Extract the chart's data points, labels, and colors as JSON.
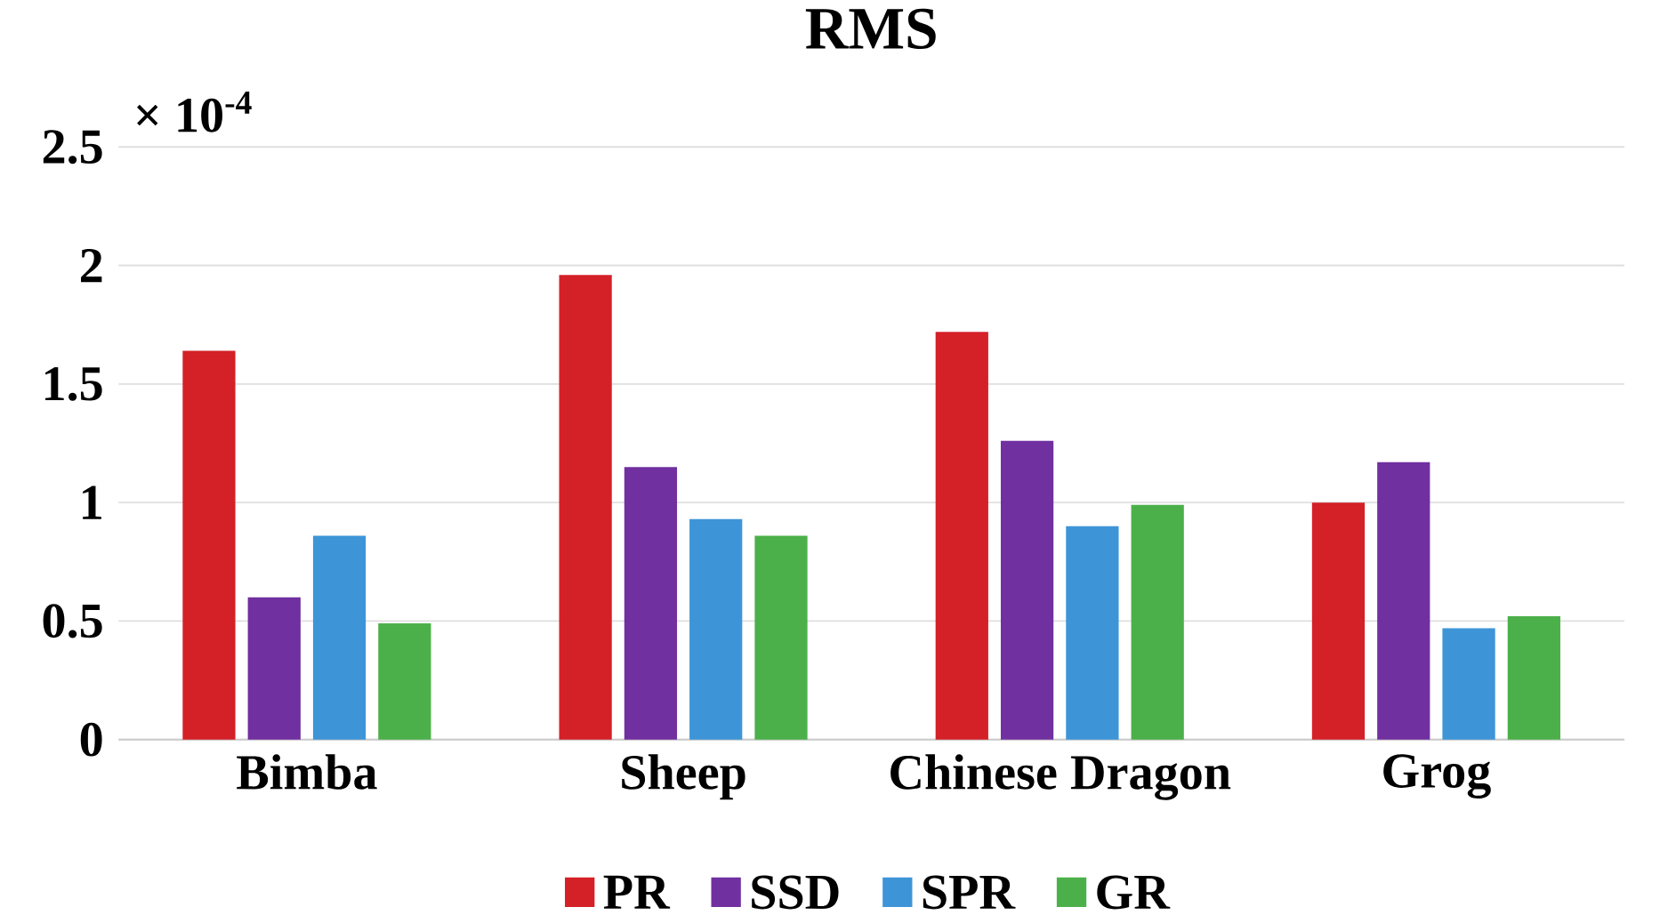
{
  "chart_data": {
    "type": "bar",
    "title": "RMS",
    "annotations": [
      "× 10$^{-4}$"
    ],
    "categories": [
      "Bimba",
      "Sheep",
      "Chinese Dragon",
      "Grog"
    ],
    "series": [
      {
        "name": "PR",
        "color": "#d42027",
        "values": [
          1.64,
          1.96,
          1.72,
          1.0
        ]
      },
      {
        "name": "SSD",
        "color": "#7030a0",
        "values": [
          0.6,
          1.15,
          1.26,
          1.17
        ]
      },
      {
        "name": "SPR",
        "color": "#3d95d8",
        "values": [
          0.86,
          0.93,
          0.9,
          0.47
        ]
      },
      {
        "name": "GR",
        "color": "#4cb04a",
        "values": [
          0.49,
          0.86,
          0.99,
          0.52
        ]
      }
    ],
    "ylim": [
      0,
      2.5
    ],
    "yticks": [
      0,
      0.5,
      1,
      1.5,
      2,
      2.5
    ],
    "grid": "y",
    "legend": "bottom"
  }
}
